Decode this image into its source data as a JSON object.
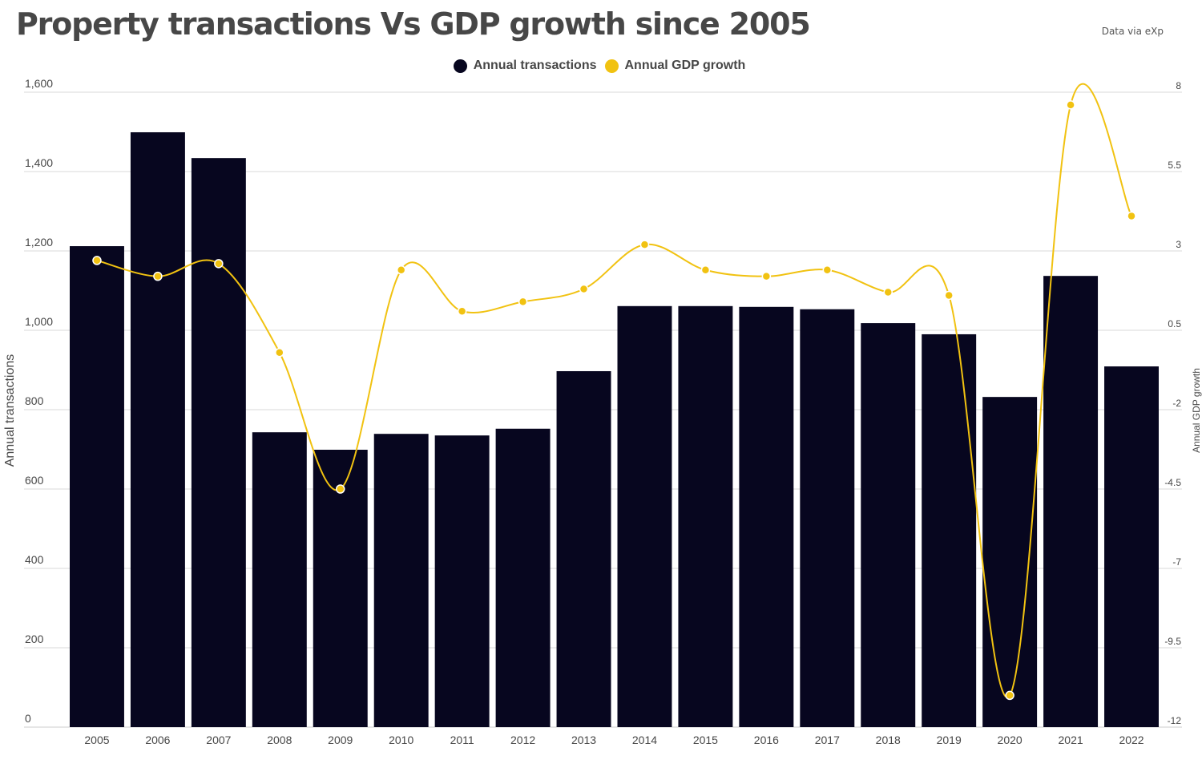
{
  "header": {
    "title": "Property transactions Vs GDP growth since 2005",
    "source": "Data via eXp"
  },
  "colors": {
    "bars": "#07061f",
    "line": "#f1c211",
    "grid": "#d9d9d9",
    "text": "#474747"
  },
  "chart_data": {
    "type": "bar",
    "title": "Property transactions Vs GDP growth since 2005",
    "categories": [
      "2005",
      "2006",
      "2007",
      "2008",
      "2009",
      "2010",
      "2011",
      "2012",
      "2013",
      "2014",
      "2015",
      "2016",
      "2017",
      "2018",
      "2019",
      "2020",
      "2021",
      "2022"
    ],
    "series": [
      {
        "name": "Annual transactions",
        "type": "bar",
        "axis": "left",
        "values": [
          1212,
          1499,
          1434,
          743,
          699,
          739,
          735,
          752,
          897,
          1061,
          1061,
          1059,
          1053,
          1018,
          990,
          832,
          1137,
          909
        ]
      },
      {
        "name": "Annual GDP growth",
        "type": "line",
        "axis": "right",
        "values": [
          2.7,
          2.2,
          2.6,
          -0.2,
          -4.5,
          2.4,
          1.1,
          1.4,
          1.8,
          3.2,
          2.4,
          2.2,
          2.4,
          1.7,
          1.6,
          -11.0,
          7.6,
          4.1
        ]
      }
    ],
    "xlabel": "",
    "ylabel": "Annual transactions",
    "y2label": "Annual GDP growth",
    "ylim": [
      0,
      1600
    ],
    "y2lim": [
      -12,
      8
    ],
    "yticks": [
      "0",
      "200",
      "400",
      "600",
      "800",
      "1,000",
      "1,200",
      "1,400",
      "1,600"
    ],
    "y2ticks": [
      "-12",
      "-9.5",
      "-7",
      "-4.5",
      "-2",
      "0.5",
      "3",
      "5.5",
      "8"
    ],
    "grid": true,
    "legend": "top-center"
  }
}
